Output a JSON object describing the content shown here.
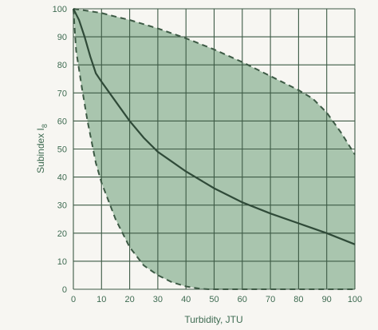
{
  "colors": {
    "background": "#f7f6f2",
    "band_fill": "#a9c5ae",
    "band_edge": "#3d5a45",
    "grid": "#3d5a45",
    "main_curve": "#2f4a38",
    "text": "#3f6b52"
  },
  "chart_data": {
    "type": "area",
    "title": "",
    "xlabel": "Turbidity, JTU",
    "ylabel_text": "Subindex I",
    "ylabel_subscript": "8",
    "xlim": [
      0,
      100
    ],
    "ylim": [
      0,
      100
    ],
    "x_ticks": [
      0,
      10,
      20,
      30,
      40,
      50,
      60,
      70,
      80,
      90,
      100
    ],
    "y_ticks": [
      0,
      10,
      20,
      30,
      40,
      50,
      60,
      70,
      80,
      90,
      100
    ],
    "grid": true,
    "series": [
      {
        "role": "band-upper",
        "style": "dashed",
        "x": [
          0,
          5,
          10,
          15,
          20,
          25,
          30,
          40,
          50,
          60,
          70,
          80,
          85,
          90,
          95,
          100
        ],
        "y": [
          100,
          99.3,
          98.5,
          97.2,
          96,
          94.5,
          93,
          89.5,
          85.5,
          81,
          76,
          71,
          68,
          63,
          56,
          48
        ]
      },
      {
        "role": "band-lower",
        "style": "dashed",
        "x": [
          0,
          1,
          3,
          5,
          8,
          10,
          15,
          20,
          25,
          30,
          35,
          40,
          45,
          48,
          50,
          100
        ],
        "y": [
          100,
          85,
          72,
          60,
          45,
          38,
          25,
          15,
          8.5,
          5,
          2.5,
          1,
          0.2,
          0,
          0,
          0
        ]
      },
      {
        "role": "central",
        "style": "solid",
        "x": [
          0,
          2,
          4,
          6,
          8,
          10,
          15,
          20,
          25,
          30,
          35,
          40,
          50,
          60,
          70,
          80,
          90,
          100
        ],
        "y": [
          100,
          96,
          90,
          83,
          77,
          74,
          67,
          60,
          54,
          49,
          45.5,
          42,
          36,
          31,
          27,
          23.5,
          20,
          16
        ]
      }
    ]
  }
}
